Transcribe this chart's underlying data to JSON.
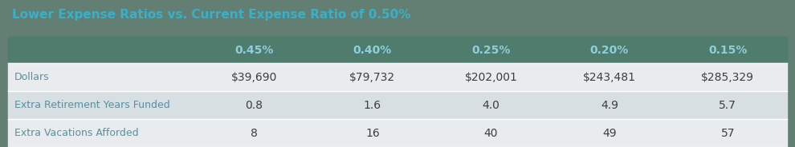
{
  "title": "Lower Expense Ratios vs. Current Expense Ratio of 0.50%",
  "title_color": "#3aafc8",
  "title_fontsize": 11,
  "header_bg": "#507c6e",
  "header_text_color": "#8ecfdc",
  "header_cols": [
    "0.45%",
    "0.40%",
    "0.25%",
    "0.20%",
    "0.15%"
  ],
  "row_labels": [
    "Dollars",
    "Extra Retirement Years Funded",
    "Extra Vacations Afforded"
  ],
  "row_label_color": "#5a8fa0",
  "row_data": [
    [
      "$39,690",
      "$79,732",
      "$202,001",
      "$243,481",
      "$285,329"
    ],
    [
      "0.8",
      "1.6",
      "4.0",
      "4.9",
      "5.7"
    ],
    [
      "8",
      "16",
      "40",
      "49",
      "57"
    ]
  ],
  "data_color": "#3d3d3d",
  "row_bg_odd": "#e8ecee",
  "row_bg_even": "#d8dfe2",
  "outer_bg": "#637f74",
  "border_color": "#ffffff",
  "header_fontsize": 10,
  "cell_fontsize": 10,
  "row_label_fontsize": 9
}
